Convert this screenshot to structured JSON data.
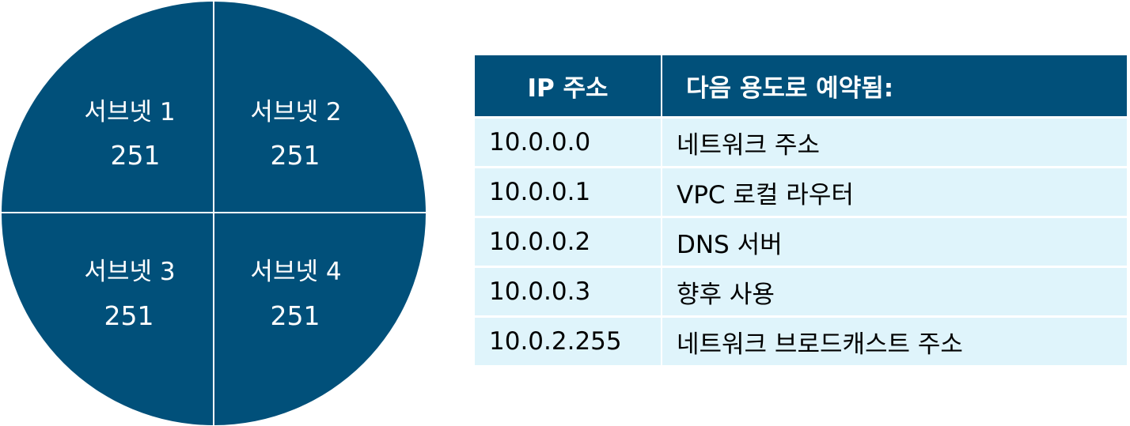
{
  "subnets": [
    {
      "name": "서브넷 1",
      "count": "251"
    },
    {
      "name": "서브넷 2",
      "count": "251"
    },
    {
      "name": "서브넷 3",
      "count": "251"
    },
    {
      "name": "서브넷 4",
      "count": "251"
    }
  ],
  "table": {
    "headers": [
      "IP 주소",
      "다음 용도로 예약됨:"
    ],
    "rows": [
      {
        "ip": "10.0.0.0",
        "use": "네트워크 주소"
      },
      {
        "ip": "10.0.0.1",
        "use": "VPC 로컬 라우터"
      },
      {
        "ip": "10.0.0.2",
        "use": "DNS 서버"
      },
      {
        "ip": "10.0.0.3",
        "use": "향후 사용"
      },
      {
        "ip": "10.0.2.255",
        "use": "네트워크 브로드캐스트 주소"
      }
    ]
  },
  "colors": {
    "dark_blue": "#01507a",
    "light_blue": "#dff4fb",
    "white": "#ffffff"
  }
}
